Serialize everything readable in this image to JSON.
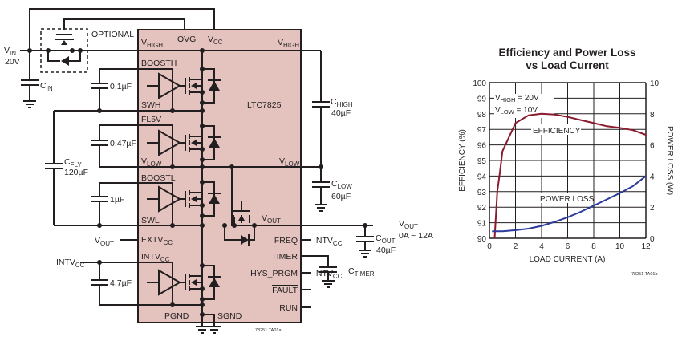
{
  "schematic": {
    "ic_name": "LTC7825",
    "ic_color": "#e4c3bf",
    "figure_code": "78251 TA01a",
    "optional_label": "OPTIONAL",
    "vin": {
      "main": "V",
      "sub": "IN",
      "value": "20V"
    },
    "cin": {
      "main": "C",
      "sub": "IN"
    },
    "chigh": {
      "main": "C",
      "sub": "HIGH",
      "value": "40µF"
    },
    "clow": {
      "main": "C",
      "sub": "LOW",
      "value": "60µF"
    },
    "cfly": {
      "main": "C",
      "sub": "FLY",
      "value": "120µF"
    },
    "cout": {
      "main": "C",
      "sub": "OUT",
      "value": "40µF"
    },
    "ctimer": {
      "main": "C",
      "sub": "TIMER"
    },
    "caps": [
      "0.1µF",
      "0.47µF",
      "1µF",
      "4.7µF"
    ],
    "vout_out": {
      "main": "V",
      "sub": "OUT",
      "value": "0A ~ 12A"
    },
    "pins": {
      "vhigh_l": {
        "main": "V",
        "sub": "HIGH"
      },
      "ovg": "OVG",
      "vcc": {
        "main": "V",
        "sub": "CC"
      },
      "vhigh_r": {
        "main": "V",
        "sub": "HIGH"
      },
      "boosth": "BOOSTH",
      "swh": "SWH",
      "fl5v": "FL5V",
      "vlow_l": {
        "main": "V",
        "sub": "LOW"
      },
      "vlow_r": {
        "main": "V",
        "sub": "LOW"
      },
      "boostl": "BOOSTL",
      "swl": "SWL",
      "vout": {
        "main": "V",
        "sub": "OUT"
      },
      "extvcc": {
        "main": "EXTV",
        "sub": "CC"
      },
      "intvcc": {
        "main": "INTV",
        "sub": "CC"
      },
      "freq": "FREQ",
      "timer": "TIMER",
      "hys": "HYS_PRGM",
      "fault": "FAULT",
      "run": "RUN",
      "pgnd": "PGND",
      "sgnd": "SGND"
    },
    "ext_labels": {
      "vout_ext": {
        "main": "V",
        "sub": "OUT"
      },
      "intvcc_ext": {
        "main": "INTV",
        "sub": "CC"
      },
      "intvcc_freq": {
        "main": "INTV",
        "sub": "CC"
      },
      "intvcc_hys": {
        "main": "INTV",
        "sub": "CC"
      }
    }
  },
  "chart_data": {
    "type": "line",
    "title": "Efficiency and Power Loss",
    "title2": "vs Load Current",
    "xlabel": "LOAD CURRENT (A)",
    "ylabel": "EFFICIENCY (%)",
    "y2label": "POWER LOSS (W)",
    "xlim": [
      0,
      12
    ],
    "ylim": [
      90,
      100
    ],
    "y2lim": [
      0,
      10
    ],
    "xticks": [
      0,
      2,
      4,
      6,
      8,
      10,
      12
    ],
    "yticks": [
      90,
      91,
      92,
      93,
      94,
      95,
      96,
      97,
      98,
      99,
      100
    ],
    "y2ticks": [
      0,
      2,
      4,
      6,
      8,
      10
    ],
    "grid": true,
    "conditions": [
      {
        "main": "V",
        "sub": "HIGH",
        "rest": " = 20V"
      },
      {
        "main": "V",
        "sub": "LOW",
        "rest": " = 10V"
      }
    ],
    "figure_code": "78251 TA01b",
    "series": [
      {
        "name": "EFFICIENCY",
        "axis": "left",
        "color": "#8b1a2f",
        "x": [
          0.4,
          0.6,
          0.8,
          1,
          2,
          3,
          4,
          5,
          6,
          7,
          8,
          9,
          10,
          11,
          12
        ],
        "y": [
          90,
          93,
          94.2,
          95.6,
          97.4,
          97.9,
          98.0,
          97.95,
          97.8,
          97.6,
          97.4,
          97.2,
          97.1,
          96.95,
          96.65
        ]
      },
      {
        "name": "POWER LOSS",
        "axis": "right",
        "color": "#2b3a9b",
        "x": [
          0.2,
          1,
          2,
          3,
          4,
          5,
          6,
          7,
          8,
          9,
          10,
          11,
          12
        ],
        "y": [
          0.45,
          0.45,
          0.52,
          0.62,
          0.8,
          1.05,
          1.35,
          1.7,
          2.1,
          2.5,
          2.9,
          3.35,
          4.0
        ]
      }
    ]
  }
}
